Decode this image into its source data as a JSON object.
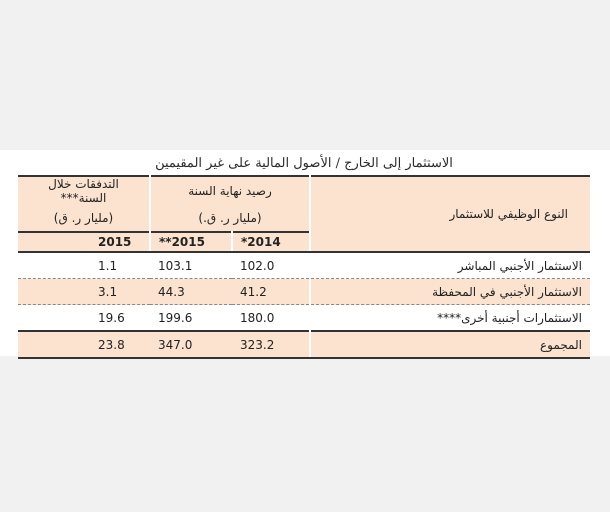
{
  "title": "الاستثمار إلى الخارج / الأصول المالية على غير المقيمين",
  "headers": {
    "type": "النوع الوظيفي للاستثمار",
    "balance": "رصيد نهاية السنة",
    "balance_unit": "(مليار ر. ق.)",
    "flows": "التدفقات خلال السنة***",
    "flows_unit": "(مليار ر. ق)",
    "y2014": "2014*",
    "y2015b": "2015**",
    "y2015f": "2015"
  },
  "colors": {
    "header_fill": "#fbe3d0",
    "rule": "#333333"
  },
  "rows": [
    {
      "label": "الاستثمار الأجنبي المباشر",
      "b2014": "102.0",
      "b2015": "103.1",
      "f2015": "1.1"
    },
    {
      "label": "الاستثمار الأجنبي في المحفظة",
      "b2014": "41.2",
      "b2015": "44.3",
      "f2015": "3.1"
    },
    {
      "label": "الاستثمارات أجنبية أخرى****",
      "b2014": "180.0",
      "b2015": "199.6",
      "f2015": "19.6"
    }
  ],
  "total": {
    "label": "المجموع",
    "b2014": "323.2",
    "b2015": "347.0",
    "f2015": "23.8"
  }
}
